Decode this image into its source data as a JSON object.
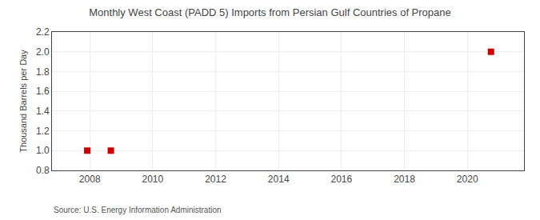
{
  "chart_data": {
    "type": "scatter",
    "title": "Monthly West Coast (PADD 5) Imports from Persian Gulf Countries of Propane",
    "ylabel": "Thousand Barrels per Day",
    "annotations": [
      "Source: U.S. Energy Information Administration"
    ],
    "x": [
      2007.92,
      2008.67,
      2020.75
    ],
    "values": [
      1.0,
      1.0,
      2.0
    ],
    "color": "#cc0000",
    "marker": "square",
    "xlim": [
      2006.8,
      2021.8
    ],
    "xticks": [
      2008,
      2010,
      2012,
      2014,
      2016,
      2018,
      2020
    ],
    "ylim": [
      0.8,
      2.2
    ],
    "yticks": [
      0.8,
      {
        "value": 1.0,
        "label": "1.0"
      },
      1.2,
      1.4,
      1.6,
      1.8,
      {
        "value": 2.0,
        "label": "2.0"
      },
      2.2
    ],
    "grid": true
  }
}
